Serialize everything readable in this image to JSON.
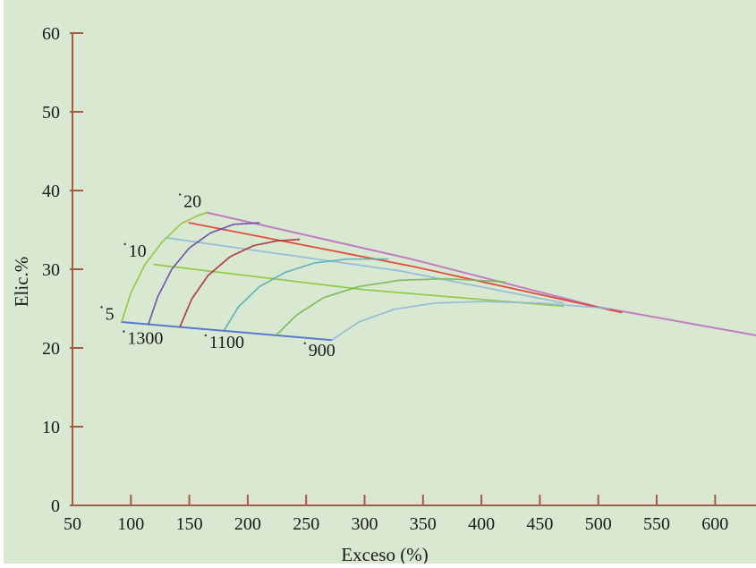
{
  "chart_data": {
    "type": "line",
    "title": "",
    "xlabel": "Exceso (%)",
    "ylabel": "Elic.%",
    "xlim": [
      50,
      635
    ],
    "ylim": [
      0,
      60
    ],
    "x_ticks": [
      50,
      100,
      150,
      200,
      250,
      300,
      350,
      400,
      450,
      500,
      550,
      600
    ],
    "y_ticks": [
      0,
      10,
      20,
      30,
      40,
      50,
      60
    ],
    "grid": false,
    "legend": "none",
    "colors": {
      "background": "#d9e8d1",
      "axis": "#a8584a",
      "edge_bottom": "#4a6ec8",
      "edge_top": "#c070c0",
      "env_mid": "#c8a8b8"
    },
    "series": [
      {
        "color": "#4a6ec8",
        "x": [
          92,
          272
        ],
        "y": [
          23.3,
          21.0
        ]
      },
      {
        "color": "#c070c0",
        "x": [
          165,
          340,
          500,
          635
        ],
        "y": [
          37.2,
          31.3,
          25.2,
          21.6
        ]
      },
      {
        "color": "#e23b2b",
        "x": [
          150,
          340,
          520
        ],
        "y": [
          35.9,
          30.4,
          24.5
        ]
      },
      {
        "color": "#8fb8d8",
        "x": [
          130,
          330,
          470
        ],
        "y": [
          34.0,
          29.8,
          25.7
        ]
      },
      {
        "color": "#8cc83c",
        "x": [
          120,
          300,
          470
        ],
        "y": [
          30.6,
          27.4,
          25.3
        ]
      },
      {
        "color": "#8cc83c",
        "x": [
          92,
          100,
          112,
          127,
          143,
          157,
          165
        ],
        "y": [
          23.3,
          27.0,
          30.6,
          33.5,
          35.8,
          36.8,
          37.2
        ]
      },
      {
        "color": "#6a4aa8",
        "x": [
          115,
          123,
          135,
          150,
          168,
          188,
          210
        ],
        "y": [
          23.0,
          26.5,
          30.0,
          32.7,
          34.6,
          35.7,
          35.9
        ]
      },
      {
        "color": "#a8323a",
        "x": [
          142,
          152,
          166,
          185,
          205,
          225,
          245
        ],
        "y": [
          22.7,
          26.2,
          29.2,
          31.6,
          33.0,
          33.6,
          33.8
        ]
      },
      {
        "color": "#58b0b8",
        "x": [
          180,
          192,
          210,
          232,
          257,
          285,
          320
        ],
        "y": [
          22.3,
          25.2,
          27.8,
          29.6,
          30.8,
          31.3,
          31.3
        ]
      },
      {
        "color": "#78b858",
        "x": [
          225,
          242,
          265,
          295,
          330,
          370,
          420
        ],
        "y": [
          21.7,
          24.2,
          26.4,
          27.8,
          28.6,
          28.8,
          28.4
        ]
      },
      {
        "color": "#8fb8d8",
        "x": [
          272,
          295,
          325,
          360,
          400,
          450,
          510
        ],
        "y": [
          21.0,
          23.3,
          24.9,
          25.7,
          25.9,
          25.7,
          25.0
        ]
      }
    ],
    "annotations": [
      {
        "text": "20",
        "x": 145,
        "y": 37.9
      },
      {
        "text": "10",
        "x": 98,
        "y": 31.6
      },
      {
        "text": "5",
        "x": 78,
        "y": 23.6
      },
      {
        "text": "1300",
        "x": 97,
        "y": 20.5
      },
      {
        "text": "1100",
        "x": 167,
        "y": 20.0
      },
      {
        "text": "900",
        "x": 252,
        "y": 19.0
      }
    ]
  }
}
